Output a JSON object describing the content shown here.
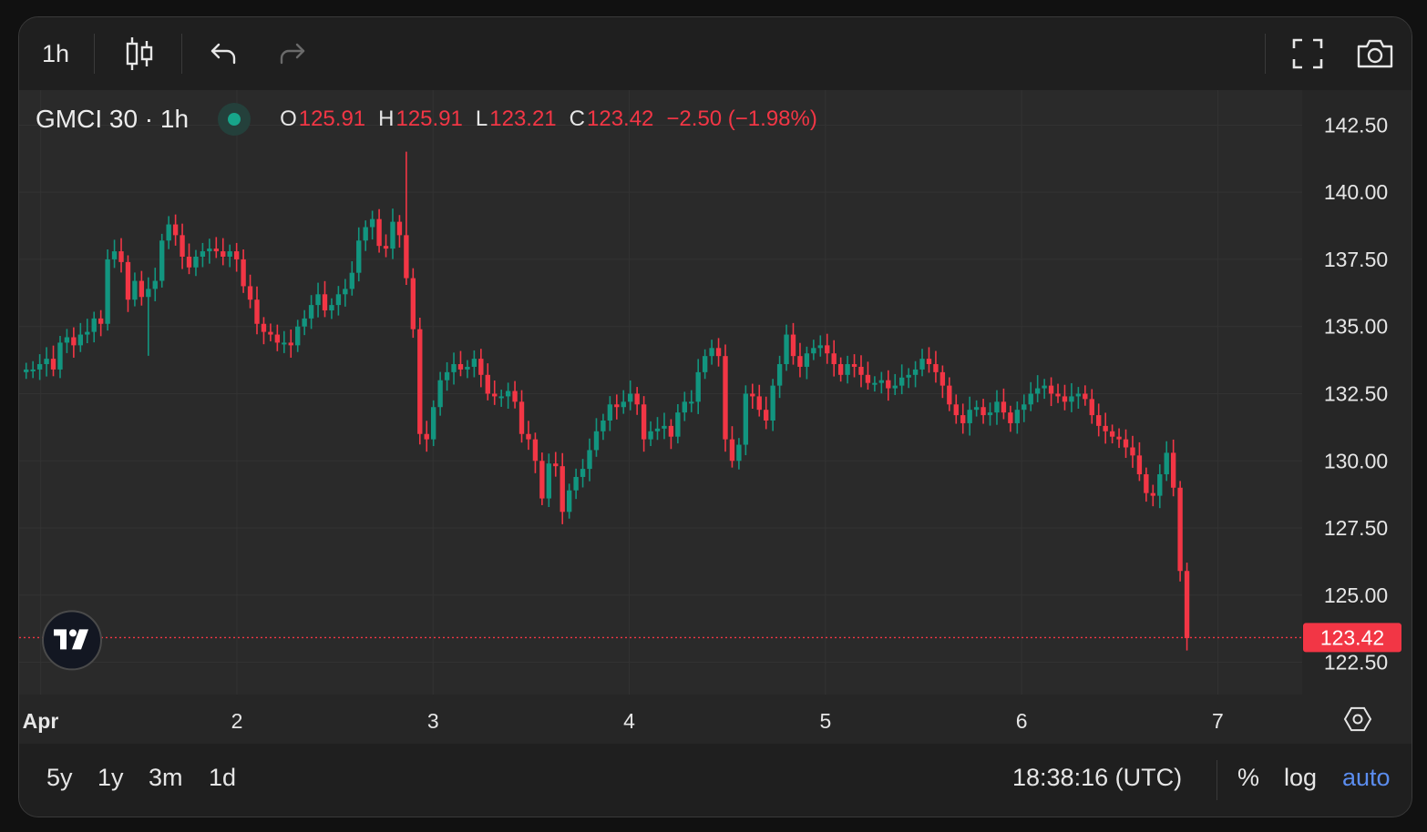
{
  "toolbar": {
    "interval_label": "1h",
    "candles_icon": "candlestick-icon",
    "undo_icon": "undo-icon",
    "redo_icon": "redo-icon",
    "fullscreen_icon": "fullscreen-icon",
    "snapshot_icon": "camera-icon"
  },
  "legend": {
    "symbol": "GMCI 30 · 1h",
    "o_label": "O",
    "o_value": "125.91",
    "h_label": "H",
    "h_value": "125.91",
    "l_label": "L",
    "l_value": "123.21",
    "c_label": "C",
    "c_value": "123.42",
    "change": "−2.50 (−1.98%)"
  },
  "bottom_bar": {
    "ranges": [
      "5y",
      "1y",
      "3m",
      "1d"
    ],
    "clock": "18:38:16 (UTC)",
    "percent_label": "%",
    "log_label": "log",
    "auto_label": "auto"
  },
  "colors": {
    "up": "#12957f",
    "down": "#f23645",
    "accent_blue": "#5b8def",
    "background": "#2a2a2a"
  },
  "chart_data": {
    "type": "candlestick",
    "symbol": "GMCI 30",
    "interval": "1h",
    "last_price": 123.42,
    "last_price_label": "123.42",
    "y_ticks": [
      "142.50",
      "140.00",
      "137.50",
      "135.00",
      "132.50",
      "130.00",
      "127.50",
      "125.00",
      "122.50"
    ],
    "ylim": [
      121.3,
      143.8
    ],
    "x_ticks": [
      {
        "label": "Apr",
        "day": 1
      },
      {
        "label": "2",
        "day": 2
      },
      {
        "label": "3",
        "day": 3
      },
      {
        "label": "4",
        "day": 4
      },
      {
        "label": "5",
        "day": 5
      },
      {
        "label": "6",
        "day": 6
      },
      {
        "label": "7",
        "day": 7
      }
    ],
    "x_start_day": 0.89,
    "x_end_day": 7.43,
    "grid": true,
    "closes": [
      133.4,
      133.4,
      133.6,
      133.8,
      133.4,
      134.4,
      134.6,
      134.3,
      134.7,
      134.8,
      135.3,
      135.1,
      137.5,
      137.8,
      137.4,
      136.0,
      136.7,
      136.1,
      136.4,
      136.7,
      138.2,
      138.8,
      138.4,
      137.6,
      137.2,
      137.6,
      137.8,
      137.9,
      137.8,
      137.6,
      137.8,
      137.5,
      136.5,
      136.0,
      135.1,
      134.8,
      134.7,
      134.4,
      134.4,
      134.3,
      135.0,
      135.3,
      135.8,
      136.2,
      135.6,
      135.8,
      136.2,
      136.4,
      137.0,
      138.2,
      138.7,
      139.0,
      138.0,
      137.9,
      138.9,
      138.4,
      136.8,
      134.9,
      131.0,
      130.8,
      132.0,
      133.0,
      133.3,
      133.6,
      133.4,
      133.5,
      133.8,
      133.2,
      132.5,
      132.4,
      132.4,
      132.6,
      132.2,
      131.0,
      130.8,
      130.0,
      128.6,
      129.9,
      129.8,
      128.1,
      128.9,
      129.4,
      129.7,
      130.4,
      131.1,
      131.5,
      132.1,
      132.0,
      132.2,
      132.5,
      132.1,
      130.8,
      131.1,
      131.2,
      131.3,
      130.9,
      131.8,
      132.2,
      132.2,
      133.3,
      133.9,
      134.2,
      133.9,
      130.8,
      130.0,
      130.6,
      132.5,
      132.4,
      131.9,
      131.5,
      132.8,
      133.6,
      134.7,
      133.9,
      133.5,
      134.0,
      134.2,
      134.3,
      134.0,
      133.6,
      133.2,
      133.6,
      133.5,
      133.2,
      132.9,
      132.9,
      133.0,
      132.7,
      132.8,
      133.1,
      133.2,
      133.4,
      133.8,
      133.6,
      133.3,
      132.8,
      132.1,
      131.7,
      131.4,
      131.9,
      132.0,
      131.7,
      131.8,
      132.2,
      131.8,
      131.4,
      131.9,
      132.1,
      132.5,
      132.7,
      132.8,
      132.5,
      132.4,
      132.2,
      132.4,
      132.5,
      132.3,
      131.7,
      131.3,
      131.1,
      130.9,
      130.8,
      130.5,
      130.2,
      129.5,
      128.8,
      128.7,
      129.5,
      130.3,
      129.0,
      125.9,
      123.4
    ]
  }
}
